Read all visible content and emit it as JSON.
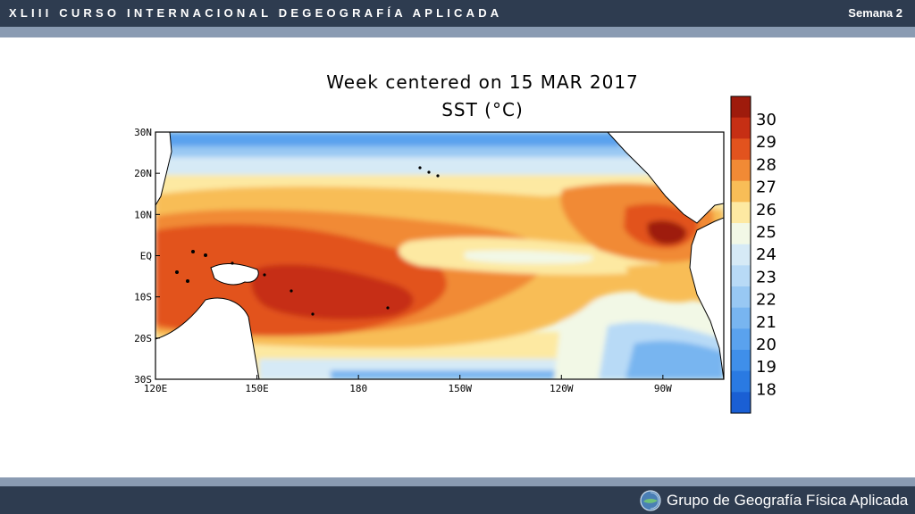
{
  "header": {
    "course_title": "XLIII CURSO INTERNACIONAL DEGEOGRAFÍA APLICADA",
    "week_label": "Semana 2"
  },
  "map": {
    "title_line1": "Week centered on 15 MAR 2017",
    "title_line2": "SST (°C)",
    "lat_labels": [
      "30N",
      "20N",
      "10N",
      "EQ",
      "10S",
      "20S",
      "30S"
    ],
    "lon_labels": [
      "120E",
      "150E",
      "180",
      "150W",
      "120W",
      "90W"
    ],
    "colors": {
      "c18": "#1a5fd4",
      "c19": "#2a7ae2",
      "c20": "#3f8fea",
      "c21": "#5aa2ee",
      "c22": "#78b5f0",
      "c23": "#98c8f3",
      "c24": "#b8daf6",
      "c25": "#d6eaf6",
      "c26": "#f2f8e6",
      "c27": "#fde9a2",
      "c28": "#f8bd57",
      "c29": "#f18a35",
      "c30": "#e2531e",
      "c31": "#c62f14",
      "c32": "#9e1b0c"
    }
  },
  "legend": {
    "labels": [
      "30",
      "29",
      "28",
      "27",
      "26",
      "25",
      "24",
      "23",
      "22",
      "21",
      "20",
      "19",
      "18"
    ]
  },
  "footer": {
    "organization": "Grupo de Geografía Física Aplicada"
  }
}
